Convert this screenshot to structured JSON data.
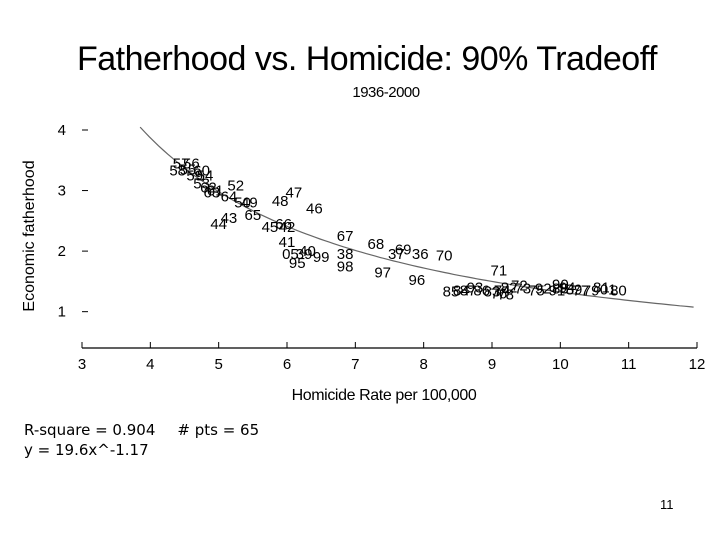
{
  "slide": {
    "title": "Fatherhood vs. Homicide: 90% Tradeoff",
    "subtitle": "1936-2000",
    "stats": {
      "r_square": "R-square = 0.904",
      "n_points": "# pts = 65",
      "equation": "y = 19.6x^-1.17"
    },
    "page_number": "11"
  },
  "chart_data": {
    "type": "scatter",
    "title": "Fatherhood vs. Homicide: 90% Tradeoff",
    "subtitle": "1936-2000",
    "xlabel": "Homicide Rate per 100,000",
    "ylabel": "Economic fatherhood",
    "xlim": [
      3,
      12
    ],
    "ylim": [
      0.4,
      4.0
    ],
    "xticks": [
      3,
      4,
      5,
      6,
      7,
      8,
      9,
      10,
      11,
      12
    ],
    "yticks": [
      1,
      2,
      3,
      4
    ],
    "grid": false,
    "legend": "none",
    "marker": "year label",
    "fit": {
      "equation": "y = 19.6x^-1.17",
      "coefficient": 19.6,
      "exponent": -1.17,
      "x_range": [
        3.85,
        11.95
      ]
    },
    "points": [
      {
        "label": "57",
        "x": 4.45,
        "y": 3.45
      },
      {
        "label": "56",
        "x": 4.6,
        "y": 3.45
      },
      {
        "label": "58",
        "x": 4.4,
        "y": 3.33
      },
      {
        "label": "55",
        "x": 4.55,
        "y": 3.35
      },
      {
        "label": "60",
        "x": 4.75,
        "y": 3.33
      },
      {
        "label": "54",
        "x": 4.8,
        "y": 3.25
      },
      {
        "label": "59",
        "x": 4.65,
        "y": 3.25
      },
      {
        "label": "53",
        "x": 4.75,
        "y": 3.12
      },
      {
        "label": "62",
        "x": 4.85,
        "y": 3.05
      },
      {
        "label": "63",
        "x": 4.9,
        "y": 2.97
      },
      {
        "label": "61",
        "x": 4.95,
        "y": 3.0
      },
      {
        "label": "52",
        "x": 5.25,
        "y": 3.08
      },
      {
        "label": "64",
        "x": 5.15,
        "y": 2.9
      },
      {
        "label": "50",
        "x": 5.35,
        "y": 2.8
      },
      {
        "label": "49",
        "x": 5.45,
        "y": 2.8
      },
      {
        "label": "48",
        "x": 5.9,
        "y": 2.83
      },
      {
        "label": "47",
        "x": 6.1,
        "y": 2.97
      },
      {
        "label": "65",
        "x": 5.5,
        "y": 2.6
      },
      {
        "label": "46",
        "x": 6.4,
        "y": 2.7
      },
      {
        "label": "43",
        "x": 5.15,
        "y": 2.55
      },
      {
        "label": "44",
        "x": 5.0,
        "y": 2.45
      },
      {
        "label": "45",
        "x": 5.75,
        "y": 2.4
      },
      {
        "label": "66",
        "x": 5.95,
        "y": 2.45
      },
      {
        "label": "42",
        "x": 6.0,
        "y": 2.4
      },
      {
        "label": "41",
        "x": 6.0,
        "y": 2.15
      },
      {
        "label": "40",
        "x": 6.3,
        "y": 2.0
      },
      {
        "label": "05",
        "x": 6.05,
        "y": 1.95
      },
      {
        "label": "39",
        "x": 6.25,
        "y": 1.95
      },
      {
        "label": "99",
        "x": 6.5,
        "y": 1.9
      },
      {
        "label": "95",
        "x": 6.15,
        "y": 1.8
      },
      {
        "label": "67",
        "x": 6.85,
        "y": 2.25
      },
      {
        "label": "38",
        "x": 6.85,
        "y": 1.95
      },
      {
        "label": "98",
        "x": 6.85,
        "y": 1.75
      },
      {
        "label": "68",
        "x": 7.3,
        "y": 2.12
      },
      {
        "label": "69",
        "x": 7.7,
        "y": 2.03
      },
      {
        "label": "37",
        "x": 7.6,
        "y": 1.95
      },
      {
        "label": "36",
        "x": 7.95,
        "y": 1.95
      },
      {
        "label": "70",
        "x": 8.3,
        "y": 1.93
      },
      {
        "label": "97",
        "x": 7.4,
        "y": 1.65
      },
      {
        "label": "96",
        "x": 7.9,
        "y": 1.52
      },
      {
        "label": "71",
        "x": 9.1,
        "y": 1.68
      },
      {
        "label": "85",
        "x": 8.4,
        "y": 1.33
      },
      {
        "label": "84",
        "x": 8.55,
        "y": 1.35
      },
      {
        "label": "87",
        "x": 8.65,
        "y": 1.35
      },
      {
        "label": "93",
        "x": 8.75,
        "y": 1.4
      },
      {
        "label": "86",
        "x": 8.85,
        "y": 1.35
      },
      {
        "label": "83",
        "x": 9.0,
        "y": 1.33
      },
      {
        "label": "74",
        "x": 9.15,
        "y": 1.35
      },
      {
        "label": "82",
        "x": 9.25,
        "y": 1.4
      },
      {
        "label": "72",
        "x": 9.4,
        "y": 1.43
      },
      {
        "label": "76",
        "x": 9.1,
        "y": 1.3
      },
      {
        "label": "78",
        "x": 9.2,
        "y": 1.28
      },
      {
        "label": "73",
        "x": 9.45,
        "y": 1.38
      },
      {
        "label": "92",
        "x": 9.75,
        "y": 1.38
      },
      {
        "label": "75",
        "x": 9.65,
        "y": 1.35
      },
      {
        "label": "91",
        "x": 9.95,
        "y": 1.35
      },
      {
        "label": "88",
        "x": 10.0,
        "y": 1.38
      },
      {
        "label": "90",
        "x": 10.0,
        "y": 1.45
      },
      {
        "label": "94",
        "x": 10.1,
        "y": 1.4
      },
      {
        "label": "89",
        "x": 10.2,
        "y": 1.37
      },
      {
        "label": "77",
        "x": 10.3,
        "y": 1.35
      },
      {
        "label": "79",
        "x": 10.45,
        "y": 1.35
      },
      {
        "label": "81",
        "x": 10.6,
        "y": 1.4
      },
      {
        "label": "80",
        "x": 10.85,
        "y": 1.35
      },
      {
        "label": "01",
        "x": 10.7,
        "y": 1.37
      }
    ]
  }
}
